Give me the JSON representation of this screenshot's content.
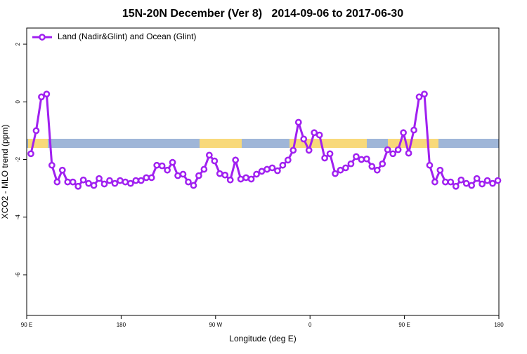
{
  "chart_data": {
    "type": "line",
    "title": "15N-20N December (Ver 8)   2014-09-06 to 2017-06-30",
    "xlabel": "Longitude (deg E)",
    "ylabel": "XCO2 - MLO trend (ppm)",
    "x": [
      94,
      99,
      104,
      109,
      114,
      119,
      124,
      129,
      134,
      139,
      144,
      149,
      154,
      159,
      164,
      169,
      174,
      179,
      184,
      189,
      194,
      199,
      204,
      209,
      214,
      219,
      224,
      229,
      234,
      239,
      244,
      249,
      254,
      259,
      264,
      269,
      274,
      279,
      284,
      289,
      294,
      299,
      304,
      309,
      314,
      319,
      324,
      329,
      334,
      339,
      344,
      349,
      354,
      359,
      364,
      369,
      374,
      379,
      384,
      389,
      394,
      399,
      404,
      409,
      414,
      419,
      424,
      429,
      434,
      439,
      444,
      449,
      454,
      459,
      464,
      469,
      474,
      479,
      484,
      489,
      494,
      499,
      504,
      509,
      514,
      519,
      524,
      529,
      534,
      539
    ],
    "series": [
      {
        "name": "Land (Nadir&Glint) and Ocean (Glint)",
        "color": "#a020f0",
        "values": [
          -1.8,
          -1.0,
          0.17,
          0.27,
          -2.2,
          -2.78,
          -2.37,
          -2.78,
          -2.78,
          -2.93,
          -2.71,
          -2.83,
          -2.9,
          -2.66,
          -2.85,
          -2.73,
          -2.83,
          -2.73,
          -2.78,
          -2.83,
          -2.73,
          -2.73,
          -2.63,
          -2.63,
          -2.2,
          -2.22,
          -2.37,
          -2.1,
          -2.56,
          -2.51,
          -2.78,
          -2.9,
          -2.56,
          -2.34,
          -1.85,
          -2.05,
          -2.49,
          -2.54,
          -2.71,
          -2.02,
          -2.68,
          -2.63,
          -2.68,
          -2.51,
          -2.41,
          -2.34,
          -2.29,
          -2.39,
          -2.2,
          -2.02,
          -1.68,
          -0.71,
          -1.29,
          -1.68,
          -1.07,
          -1.15,
          -1.95,
          -1.8,
          -2.49,
          -2.37,
          -2.29,
          -2.15,
          -1.9,
          -2.0,
          -1.98,
          -2.24,
          -2.37,
          -2.15,
          -1.66,
          -1.8,
          -1.66,
          -1.07,
          -1.78,
          -0.98,
          0.17,
          0.27,
          -2.2,
          -2.78,
          -2.37,
          -2.78,
          -2.78,
          -2.93,
          -2.71,
          -2.83,
          -2.9,
          -2.66,
          -2.85,
          -2.73,
          -2.83,
          -2.73
        ]
      }
    ],
    "xlim": [
      90,
      540
    ],
    "ylim": [
      -7.41,
      2.56
    ],
    "xticks": [
      {
        "value": 90,
        "label": "90 E"
      },
      180,
      {
        "value": 270,
        "label": "90 W"
      },
      {
        "value": 360,
        "label": "0"
      },
      {
        "value": 450,
        "label": "90 E"
      },
      {
        "value": 540,
        "label": "180"
      }
    ],
    "yticks": [
      -6,
      -4,
      -2,
      0,
      2
    ],
    "legend": "top-left"
  }
}
